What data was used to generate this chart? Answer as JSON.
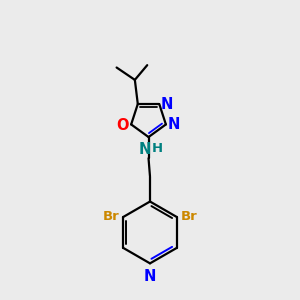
{
  "background_color": "#ebebeb",
  "bond_color": "#000000",
  "nitrogen_color": "#0000ff",
  "oxygen_color": "#ff0000",
  "bromine_color": "#cc8800",
  "nh_n_color": "#008080",
  "nh_h_color": "#008080",
  "line_width": 1.6,
  "figsize": [
    3.0,
    3.0
  ],
  "dpi": 100,
  "xlim": [
    0,
    10
  ],
  "ylim": [
    0,
    10
  ]
}
